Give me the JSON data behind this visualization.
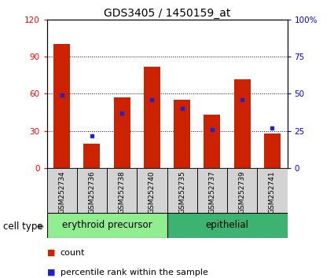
{
  "title": "GDS3405 / 1450159_at",
  "samples": [
    "GSM252734",
    "GSM252736",
    "GSM252738",
    "GSM252740",
    "GSM252735",
    "GSM252737",
    "GSM252739",
    "GSM252741"
  ],
  "counts": [
    100,
    20,
    57,
    82,
    55,
    43,
    72,
    28
  ],
  "percentiles": [
    49,
    22,
    37,
    46,
    40,
    26,
    46,
    27
  ],
  "groups": [
    {
      "label": "erythroid precursor",
      "start": 0,
      "end": 4,
      "color": "#90EE90"
    },
    {
      "label": "epithelial",
      "start": 4,
      "end": 8,
      "color": "#3CB371"
    }
  ],
  "left_ylim": [
    0,
    120
  ],
  "right_ylim": [
    0,
    100
  ],
  "left_yticks": [
    0,
    30,
    60,
    90,
    120
  ],
  "right_yticks": [
    0,
    25,
    50,
    75,
    100
  ],
  "right_yticklabels": [
    "0",
    "25",
    "50",
    "75",
    "100%"
  ],
  "bar_color": "#CC2200",
  "percentile_color": "#2222CC",
  "title_fontsize": 10,
  "tick_fontsize": 7.5,
  "bar_width": 0.55,
  "group_label_fontsize": 8.5,
  "cell_type_fontsize": 8.5,
  "legend_fontsize": 8,
  "sample_fontsize": 6.5
}
